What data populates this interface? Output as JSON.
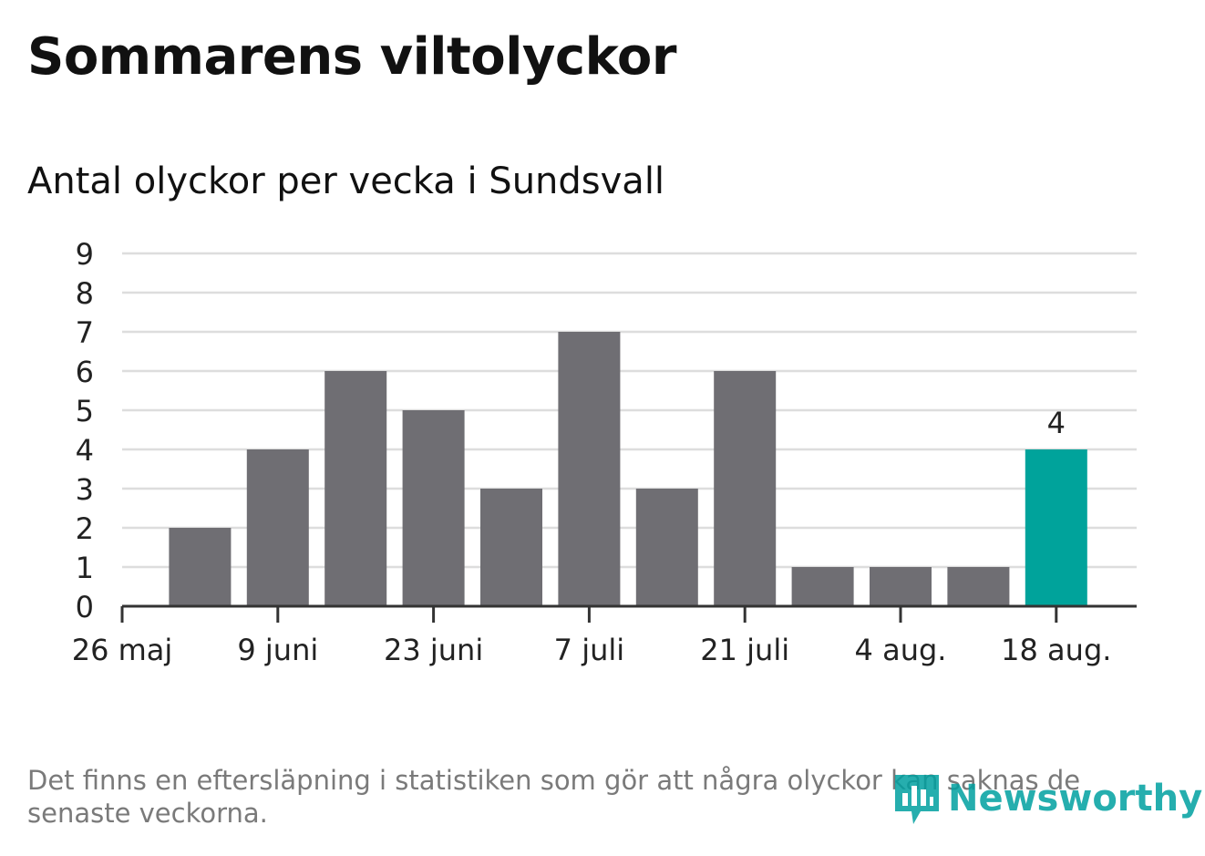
{
  "title": "Sommarens viltolyckor",
  "subtitle": "Antal olyckor per vecka i Sundsvall",
  "footnote": "Det finns en eftersläpning i statistiken som gör att några olyckor kan saknas de senaste veckorna.",
  "logo": {
    "text": "Newsworthy",
    "icon": "newsworthy-bars-icon",
    "color": "#00a0a0"
  },
  "colors": {
    "bar": "#6f6e73",
    "highlight": "#00a39b",
    "grid": "#dddddd",
    "axis": "#333333"
  },
  "chart_data": {
    "type": "bar",
    "title": "Sommarens viltolyckor",
    "subtitle": "Antal olyckor per vecka i Sundsvall",
    "xlabel": "",
    "ylabel": "",
    "ylim": [
      0,
      9
    ],
    "yticks": [
      "0",
      "1",
      "2",
      "3",
      "4",
      "5",
      "6",
      "7",
      "8",
      "9"
    ],
    "xtick_labels": [
      "26 maj",
      "9 juni",
      "23 juni",
      "7 juli",
      "21 juli",
      "4 aug.",
      "18 aug."
    ],
    "values": [
      2,
      4,
      6,
      5,
      3,
      7,
      3,
      6,
      1,
      1,
      1,
      4
    ],
    "highlight_index": 11,
    "data_labels": [
      {
        "index": 11,
        "text": "4"
      }
    ],
    "grid": true,
    "legend": "none"
  }
}
